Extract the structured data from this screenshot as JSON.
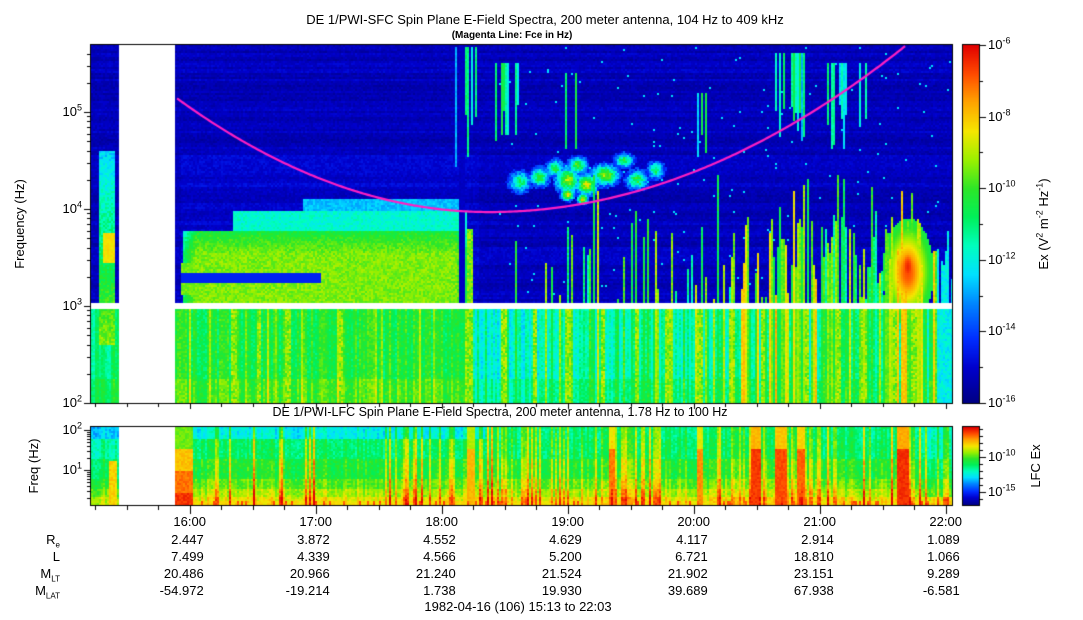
{
  "header": {
    "title": "DE 1/PWI-SFC  Spin Plane E-Field Spectra, 200 meter antenna, 104 Hz to 409 kHz",
    "subtitle": "(Magenta Line: Fce in Hz)"
  },
  "chart_data": [
    {
      "type": "heatmap",
      "id": "sfc",
      "instrument": "DE 1/PWI-SFC",
      "title": "DE 1/PWI-SFC  Spin Plane E-Field Spectra, 200 meter antenna, 104 Hz to 409 kHz",
      "subtitle": "(Magenta Line: Fce in Hz)",
      "ylabel": "Frequency (Hz)",
      "yscale": "log",
      "freq_range_hz": [
        104,
        409000
      ],
      "ytick_exponents": [
        5,
        4,
        3,
        2
      ],
      "time_start": "15:13",
      "time_end": "22:03",
      "colorbar": {
        "quantity_tokens": [
          [
            "t",
            "Ex (V"
          ],
          [
            "s",
            "2"
          ],
          [
            "t",
            " m"
          ],
          [
            "s",
            "-2"
          ],
          [
            "t",
            " Hz"
          ],
          [
            "s",
            "-1"
          ],
          [
            "t",
            ")"
          ]
        ],
        "tick_exponents": [
          -6,
          -8,
          -10,
          -12,
          -14,
          -16
        ],
        "units": "V2 m-2 Hz-1"
      },
      "magenta_line": {
        "meaning": "Fce in Hz",
        "start": {
          "t": 15.9,
          "f_hz": 138000
        },
        "min": {
          "t": 18.38,
          "f_hz": 9300
        },
        "end": {
          "t": 21.68,
          "f_hz": 480000
        }
      },
      "data_gap_hours": [
        15.433,
        15.883
      ],
      "white_band_hz": [
        920,
        1060
      ],
      "features": {
        "low_band_bright_cols_hours": [
          16.35,
          16.55,
          16.78,
          17.2,
          18.21,
          18.5,
          18.74,
          19.0,
          19.28,
          19.55,
          19.8,
          20.05,
          20.3,
          20.55,
          20.9,
          21.15,
          21.35,
          21.6,
          21.75
        ],
        "green_patch": {
          "t0": 15.93,
          "t1": 18.23,
          "L0": 3.0,
          "L1": 3.78
        },
        "fringe": {
          "t0": 16.35,
          "t1": 18.2,
          "L0": 3.78,
          "L1": 3.97
        },
        "upper_bump": {
          "t0": 16.9,
          "t1": 18.15,
          "L0": 3.97,
          "L1": 4.1
        },
        "dark_stripe": {
          "t0": 15.9,
          "t1": 17.05,
          "L0": 3.24,
          "L1": 3.34
        },
        "pre_gap_enhancement": {
          "t0": 15.275,
          "t1": 15.41,
          "L0": 2.6,
          "L1": 4.6,
          "core": {
            "t0": 15.31,
            "t1": 15.4,
            "L0": 3.45,
            "L1": 3.75
          }
        },
        "dark_column": {
          "t0": 18.145,
          "t1": 18.19
        },
        "bright_column": {
          "t0": 18.205,
          "t1": 18.245
        },
        "chorus_blobs": [
          {
            "t": 18.62,
            "L": 4.28,
            "rt": 0.08,
            "rL": 0.1,
            "v": 0.45
          },
          {
            "t": 18.78,
            "L": 4.33,
            "rt": 0.07,
            "rL": 0.09,
            "v": 0.52
          },
          {
            "t": 18.9,
            "L": 4.42,
            "rt": 0.06,
            "rL": 0.08,
            "v": 0.5
          },
          {
            "t": 19.0,
            "L": 4.3,
            "rt": 0.09,
            "rL": 0.12,
            "v": 0.62
          },
          {
            "t": 19.0,
            "L": 4.15,
            "rt": 0.05,
            "rL": 0.06,
            "v": 0.7
          },
          {
            "t": 19.08,
            "L": 4.45,
            "rt": 0.07,
            "rL": 0.08,
            "v": 0.55
          },
          {
            "t": 19.12,
            "L": 4.1,
            "rt": 0.04,
            "rL": 0.05,
            "v": 0.72
          },
          {
            "t": 19.15,
            "L": 4.25,
            "rt": 0.08,
            "rL": 0.1,
            "v": 0.66
          },
          {
            "t": 19.3,
            "L": 4.35,
            "rt": 0.1,
            "rL": 0.1,
            "v": 0.6
          },
          {
            "t": 19.45,
            "L": 4.5,
            "rt": 0.07,
            "rL": 0.07,
            "v": 0.48
          },
          {
            "t": 19.55,
            "L": 4.3,
            "rt": 0.08,
            "rL": 0.09,
            "v": 0.5
          },
          {
            "t": 19.7,
            "L": 4.4,
            "rt": 0.06,
            "rL": 0.08,
            "v": 0.45
          }
        ],
        "akr_clusters": [
          {
            "t0": 18.05,
            "t1": 18.28,
            "L0": 4.4,
            "L1": 5.66,
            "d": 0.5
          },
          {
            "t0": 18.4,
            "t1": 18.62,
            "L0": 4.7,
            "L1": 5.5,
            "d": 0.35
          },
          {
            "t0": 18.85,
            "t1": 19.1,
            "L0": 4.6,
            "L1": 5.4,
            "d": 0.25
          },
          {
            "t0": 19.9,
            "t1": 20.1,
            "L0": 4.5,
            "L1": 5.2,
            "d": 0.3
          },
          {
            "t0": 20.6,
            "t1": 20.9,
            "L0": 4.7,
            "L1": 5.6,
            "d": 0.35
          },
          {
            "t0": 21.05,
            "t1": 21.45,
            "L0": 4.6,
            "L1": 5.5,
            "d": 0.4
          }
        ],
        "forest": {
          "start_t": 18.3,
          "clusters": [
            [
              20.35,
              21.0
            ],
            [
              21.5,
              21.92
            ]
          ]
        },
        "orange_blob": {
          "t": 21.7,
          "L": 3.35,
          "rt": 0.14,
          "rL": 0.38
        },
        "cool_after_t": 21.93
      }
    },
    {
      "type": "heatmap",
      "id": "lfc",
      "instrument": "DE 1/PWI-LFC",
      "title": "DE 1/PWI-LFC  Spin Plane E-Field Spectra, 200 meter antenna, 1.78 Hz to 100 Hz",
      "ylabel": "Freq (Hz)",
      "yscale": "log",
      "freq_range_hz": [
        1.78,
        100
      ],
      "ytick_exponents": [
        2,
        1
      ],
      "colorbar": {
        "label": "LFC Ex",
        "tick_exponents": [
          -10,
          -15
        ]
      },
      "data_gap_hours": [
        15.433,
        15.883
      ],
      "features": {
        "burst": {
          "t0": 15.885,
          "t1": 16.03
        },
        "pre_gap_orange": {
          "t0": 15.355,
          "t1": 15.425,
          "Lmax": 1.25
        },
        "top_cyan_until_t": 18.35,
        "strong_columns": [
          {
            "t0": 18.2,
            "t1": 18.26,
            "v": 0.8
          },
          {
            "t0": 19.33,
            "t1": 19.38,
            "v": 0.86
          },
          {
            "t0": 20.02,
            "t1": 20.07,
            "v": 0.84
          },
          {
            "t0": 20.45,
            "t1": 20.54,
            "v": 0.92
          },
          {
            "t0": 20.65,
            "t1": 20.74,
            "v": 0.9
          },
          {
            "t0": 20.82,
            "t1": 20.88,
            "v": 0.88
          },
          {
            "t0": 21.62,
            "t1": 21.71,
            "v": 0.93
          }
        ],
        "cool_after_t": 21.85
      }
    }
  ],
  "time_axis": {
    "tick_labels": [
      "16:00",
      "17:00",
      "18:00",
      "19:00",
      "20:00",
      "21:00",
      "22:00"
    ],
    "tick_hours": [
      16,
      17,
      18,
      19,
      20,
      21,
      22
    ],
    "minor_interval_min": 15
  },
  "ephemeris": {
    "row_labels": [
      {
        "base": "R",
        "sub": "e"
      },
      {
        "base": "L",
        "sub": ""
      },
      {
        "base": "M",
        "sub": "LT"
      },
      {
        "base": "M",
        "sub": "LAT"
      }
    ],
    "rows": [
      {
        "name": "Re",
        "values": [
          "2.447",
          "3.872",
          "4.552",
          "4.629",
          "4.117",
          "2.914",
          "1.089"
        ]
      },
      {
        "name": "L",
        "values": [
          "7.499",
          "4.339",
          "4.566",
          "5.200",
          "6.721",
          "18.810",
          "1.066"
        ]
      },
      {
        "name": "MLT",
        "values": [
          "20.486",
          "20.966",
          "21.240",
          "21.524",
          "21.902",
          "23.151",
          "9.289"
        ]
      },
      {
        "name": "MLAT",
        "values": [
          "-54.972",
          "-19.214",
          "1.738",
          "19.930",
          "39.689",
          "67.938",
          "-6.581"
        ]
      }
    ]
  },
  "footer": {
    "date_line": "1982-04-16 (106) 15:13 to 22:03"
  }
}
